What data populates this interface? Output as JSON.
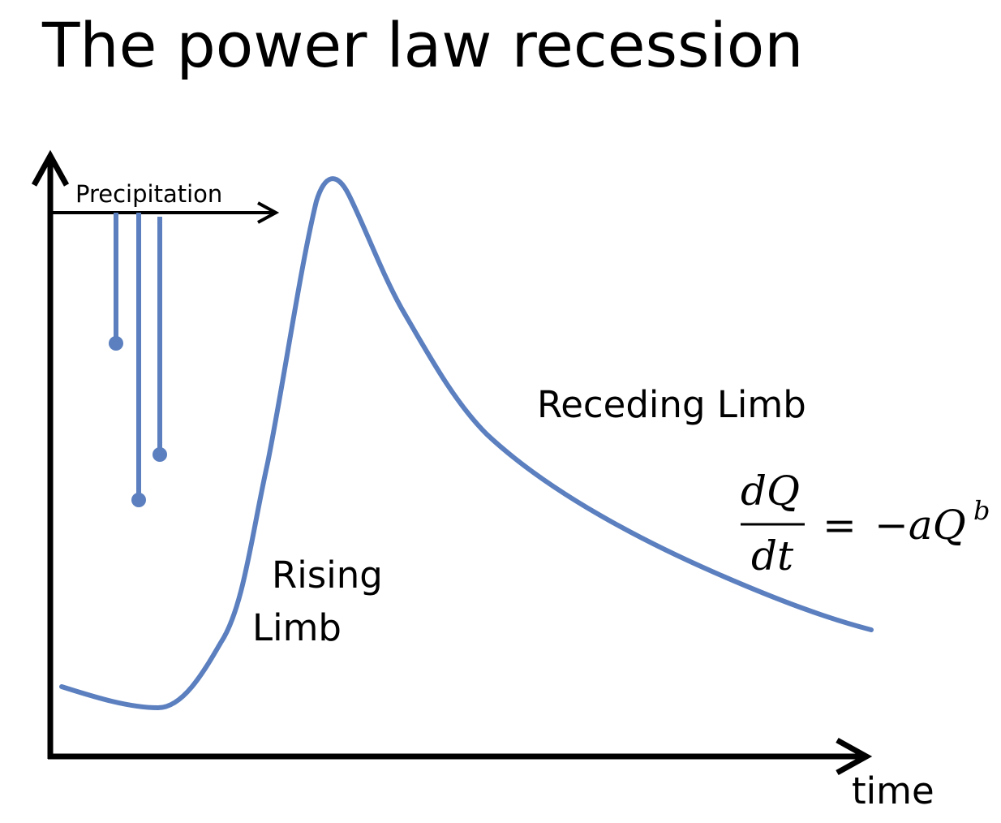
{
  "title": "The power law recession",
  "labels": {
    "precipitation": "Precipitation",
    "rising_limb_line1": "Rising",
    "rising_limb_line2": "Limb",
    "receding_limb": "Receding Limb",
    "time_axis": "time"
  },
  "equation": {
    "numerator": "dQ",
    "denominator": "dt",
    "equals": "=",
    "rhs": "−aQ",
    "exponent": "b"
  },
  "colors": {
    "hydrograph": "#5B7FBF",
    "axes": "#000000",
    "precip_bars": "#5B7FBF"
  },
  "precipitation_bars": [
    {
      "name": "rain-bar-1",
      "relative_depth": 0.45
    },
    {
      "name": "rain-bar-2",
      "relative_depth": 1.0
    },
    {
      "name": "rain-bar-3",
      "relative_depth": 0.83
    }
  ]
}
